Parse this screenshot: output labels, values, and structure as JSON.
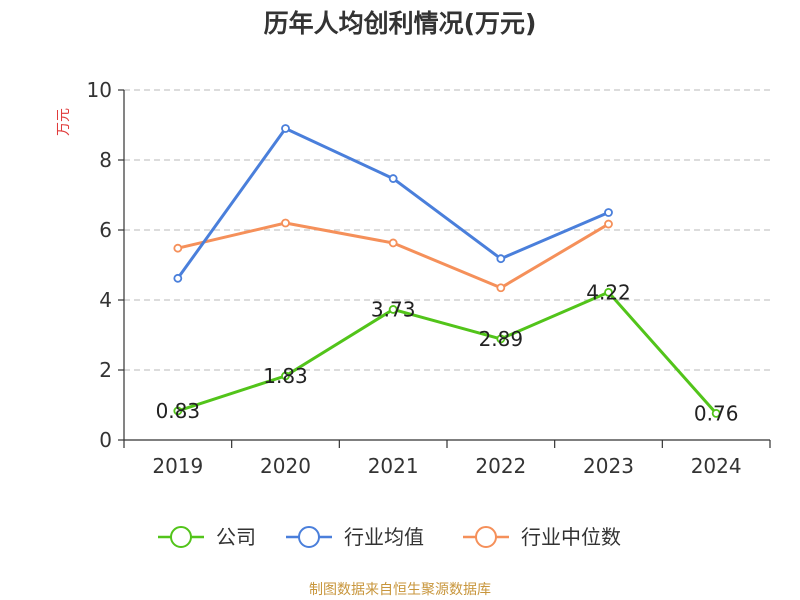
{
  "chart_data": {
    "type": "line",
    "title": "历年人均创利情况(万元)",
    "ylabel": "万元",
    "xlabel": "",
    "categories": [
      "2019",
      "2020",
      "2021",
      "2022",
      "2023",
      "2024"
    ],
    "ylim": [
      0,
      10
    ],
    "yticks": [
      "0",
      "2",
      "4",
      "6",
      "8",
      "10"
    ],
    "grid": true,
    "legend_position": "bottom",
    "series": [
      {
        "name": "公司",
        "color": "#52c41a",
        "values": [
          0.83,
          1.83,
          3.73,
          2.89,
          4.22,
          0.76
        ],
        "labels": [
          "0.83",
          "1.83",
          "3.73",
          "2.89",
          "4.22",
          "0.76"
        ]
      },
      {
        "name": "行业均值",
        "color": "#4a7fdb",
        "values": [
          4.62,
          8.9,
          7.47,
          5.18,
          6.5,
          null
        ]
      },
      {
        "name": "行业中位数",
        "color": "#f5905a",
        "values": [
          5.48,
          6.2,
          5.63,
          4.35,
          6.17,
          null
        ]
      }
    ],
    "source": "制图数据来自恒生聚源数据库"
  }
}
